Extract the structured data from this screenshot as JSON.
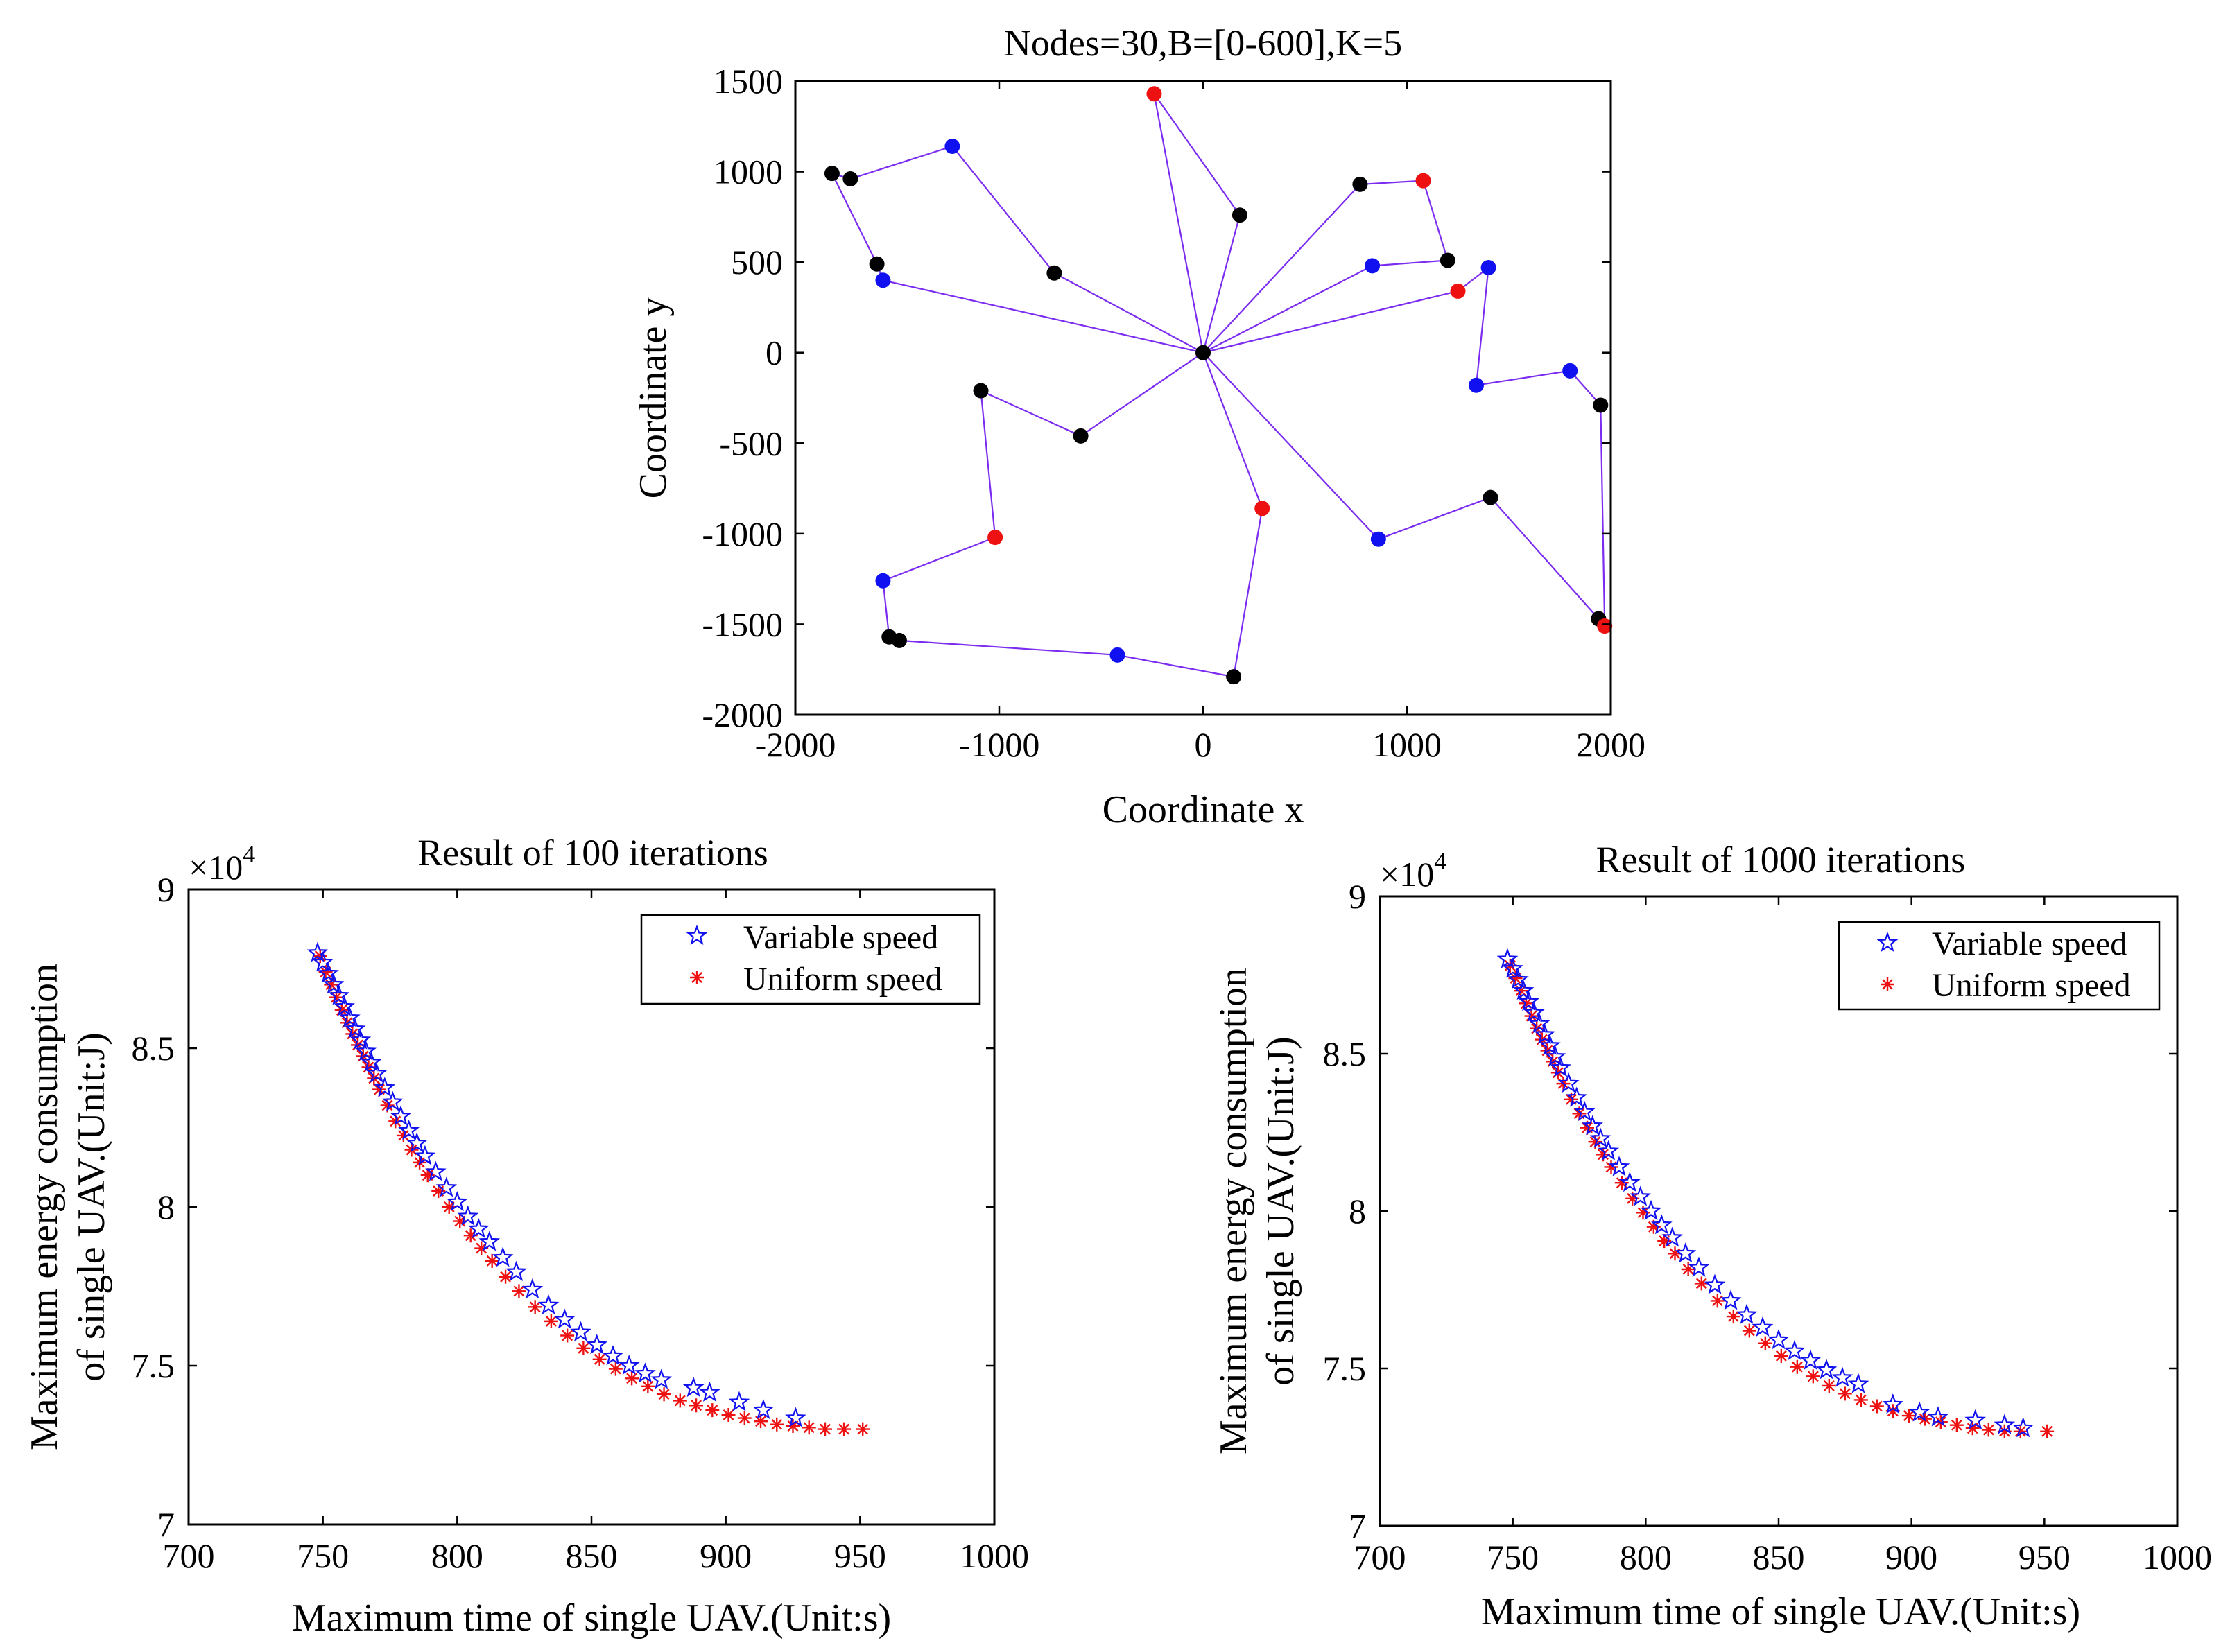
{
  "colors": {
    "blue": "#1010f0",
    "red": "#ee1111",
    "black": "#000000",
    "route": "#7b2cf0"
  },
  "chart_data": [
    {
      "type": "scatter",
      "title": "Nodes=30,B=[0-600],K=5",
      "xlabel": "Coordinate x",
      "ylabel": "Coordinate y",
      "xlim": [
        -2000,
        2000
      ],
      "ylim": [
        -2000,
        1500
      ],
      "xticks": [
        -2000,
        -1000,
        0,
        1000,
        2000
      ],
      "xtick_labels": [
        "-2000",
        "-1000",
        "0",
        "1000",
        "2000"
      ],
      "yticks": [
        1500,
        1000,
        500,
        0,
        -500,
        -1000,
        -1500,
        -2000
      ],
      "ytick_labels": [
        "1500",
        "1000",
        "500",
        "0",
        "-500",
        "-1000",
        "-1500",
        "-2000"
      ],
      "depot": {
        "x": 0,
        "y": 0
      },
      "nodes": [
        {
          "x": -1820,
          "y": 990,
          "color": "black"
        },
        {
          "x": -1730,
          "y": 960,
          "color": "black"
        },
        {
          "x": -1230,
          "y": 1140,
          "color": "blue"
        },
        {
          "x": -1600,
          "y": 490,
          "color": "black"
        },
        {
          "x": -1570,
          "y": 400,
          "color": "blue"
        },
        {
          "x": -730,
          "y": 440,
          "color": "black"
        },
        {
          "x": -240,
          "y": 1430,
          "color": "red"
        },
        {
          "x": 180,
          "y": 760,
          "color": "black"
        },
        {
          "x": 770,
          "y": 930,
          "color": "black"
        },
        {
          "x": 1080,
          "y": 950,
          "color": "red"
        },
        {
          "x": 830,
          "y": 480,
          "color": "blue"
        },
        {
          "x": 1200,
          "y": 510,
          "color": "black"
        },
        {
          "x": 1250,
          "y": 340,
          "color": "red"
        },
        {
          "x": 1400,
          "y": 470,
          "color": "blue"
        },
        {
          "x": 1340,
          "y": -180,
          "color": "blue"
        },
        {
          "x": 1800,
          "y": -100,
          "color": "blue"
        },
        {
          "x": 1950,
          "y": -290,
          "color": "black"
        },
        {
          "x": 1940,
          "y": -1470,
          "color": "black"
        },
        {
          "x": 1970,
          "y": -1510,
          "color": "red"
        },
        {
          "x": 1410,
          "y": -800,
          "color": "black"
        },
        {
          "x": 860,
          "y": -1030,
          "color": "blue"
        },
        {
          "x": 290,
          "y": -860,
          "color": "red"
        },
        {
          "x": 150,
          "y": -1790,
          "color": "black"
        },
        {
          "x": -420,
          "y": -1670,
          "color": "blue"
        },
        {
          "x": -1490,
          "y": -1590,
          "color": "black"
        },
        {
          "x": -1540,
          "y": -1570,
          "color": "black"
        },
        {
          "x": -1570,
          "y": -1260,
          "color": "blue"
        },
        {
          "x": -1020,
          "y": -1020,
          "color": "red"
        },
        {
          "x": -1090,
          "y": -210,
          "color": "black"
        },
        {
          "x": -600,
          "y": -460,
          "color": "black"
        }
      ],
      "routes": [
        [
          [
            0,
            0
          ],
          [
            -1570,
            400
          ],
          [
            -1600,
            490
          ],
          [
            -1820,
            990
          ],
          [
            -1730,
            960
          ],
          [
            -1230,
            1140
          ],
          [
            -730,
            440
          ],
          [
            0,
            0
          ]
        ],
        [
          [
            0,
            0
          ],
          [
            -240,
            1430
          ],
          [
            180,
            760
          ],
          [
            0,
            0
          ]
        ],
        [
          [
            0,
            0
          ],
          [
            770,
            930
          ],
          [
            1080,
            950
          ],
          [
            1200,
            510
          ],
          [
            830,
            480
          ],
          [
            0,
            0
          ]
        ],
        [
          [
            0,
            0
          ],
          [
            1250,
            340
          ],
          [
            1400,
            470
          ],
          [
            1340,
            -180
          ],
          [
            1800,
            -100
          ],
          [
            1950,
            -290
          ],
          [
            1970,
            -1510
          ],
          [
            1940,
            -1470
          ],
          [
            1410,
            -800
          ],
          [
            860,
            -1030
          ],
          [
            0,
            0
          ]
        ],
        [
          [
            0,
            0
          ],
          [
            290,
            -860
          ],
          [
            150,
            -1790
          ],
          [
            -420,
            -1670
          ],
          [
            -1490,
            -1590
          ],
          [
            -1540,
            -1570
          ],
          [
            -1570,
            -1260
          ],
          [
            -1020,
            -1020
          ],
          [
            -1090,
            -210
          ],
          [
            -600,
            -460
          ],
          [
            0,
            0
          ]
        ]
      ]
    },
    {
      "type": "scatter",
      "title": "Result of 100 iterations",
      "xlabel": "Maximum time of single UAV.(Unit:s)",
      "ylabel_lines": [
        "Maximum energy consumption",
        "of single UAV.(Unit:J)"
      ],
      "xlim": [
        700,
        1000
      ],
      "ylim": [
        70000,
        90000
      ],
      "xticks": [
        700,
        750,
        800,
        850,
        900,
        950,
        1000
      ],
      "xtick_labels": [
        "700",
        "750",
        "800",
        "850",
        "900",
        "950",
        "1000"
      ],
      "yticks": [
        70000,
        75000,
        80000,
        85000,
        90000
      ],
      "ytick_labels": [
        "7",
        "7.5",
        "8",
        "8.5",
        "9"
      ],
      "y_multiplier_base": "×10",
      "y_multiplier_exp": "4",
      "legend": [
        "Variable speed",
        "Uniform speed"
      ],
      "legend_position": "top-right",
      "series": [
        {
          "name": "Variable speed",
          "marker": "pentagram",
          "x": [
            748,
            750,
            752,
            754,
            756,
            758,
            760,
            762,
            764,
            766,
            768,
            770,
            773,
            776,
            779,
            782,
            785,
            788,
            792,
            796,
            800,
            804,
            808,
            812,
            817,
            822,
            828,
            834,
            840,
            846,
            852,
            858,
            864,
            870,
            876,
            888,
            894,
            905,
            914,
            926
          ],
          "y": [
            88000,
            87700,
            87350,
            87000,
            86650,
            86300,
            85950,
            85600,
            85250,
            84900,
            84550,
            84200,
            83750,
            83300,
            82850,
            82400,
            82000,
            81600,
            81100,
            80600,
            80150,
            79700,
            79300,
            78900,
            78400,
            77950,
            77400,
            76900,
            76450,
            76050,
            75650,
            75300,
            75000,
            74750,
            74550,
            74300,
            74150,
            73850,
            73600,
            73350
          ]
        },
        {
          "name": "Uniform speed",
          "marker": "asterisk",
          "x": [
            749,
            751,
            753,
            755,
            757,
            759,
            761,
            763,
            765,
            767,
            769,
            771,
            774,
            777,
            780,
            783,
            786,
            789,
            793,
            797,
            801,
            805,
            809,
            813,
            818,
            823,
            829,
            835,
            841,
            847,
            853,
            859,
            865,
            871,
            877,
            883,
            889,
            895,
            901,
            907,
            913,
            919,
            925,
            931,
            937,
            944,
            951
          ],
          "y": [
            87900,
            87400,
            87000,
            86600,
            86200,
            85800,
            85450,
            85100,
            84750,
            84400,
            84050,
            83700,
            83200,
            82700,
            82250,
            81800,
            81400,
            81000,
            80500,
            80000,
            79550,
            79100,
            78700,
            78300,
            77800,
            77350,
            76850,
            76400,
            75950,
            75550,
            75200,
            74900,
            74600,
            74350,
            74100,
            73900,
            73750,
            73600,
            73450,
            73350,
            73250,
            73150,
            73100,
            73050,
            73000,
            73000,
            73000
          ]
        }
      ]
    },
    {
      "type": "scatter",
      "title": "Result of 1000 iterations",
      "xlabel": "Maximum time of single UAV.(Unit:s)",
      "ylabel_lines": [
        "Maximum energy consumption",
        "of single UAV.(Unit:J)"
      ],
      "xlim": [
        700,
        1000
      ],
      "ylim": [
        70000,
        90000
      ],
      "xticks": [
        700,
        750,
        800,
        850,
        900,
        950,
        1000
      ],
      "xtick_labels": [
        "700",
        "750",
        "800",
        "850",
        "900",
        "950",
        "1000"
      ],
      "yticks": [
        70000,
        75000,
        80000,
        85000,
        90000
      ],
      "ytick_labels": [
        "7",
        "7.5",
        "8",
        "8.5",
        "9"
      ],
      "y_multiplier_base": "×10",
      "y_multiplier_exp": "4",
      "legend": [
        "Variable speed",
        "Uniform speed"
      ],
      "legend_position": "top-right",
      "series": [
        {
          "name": "Variable speed",
          "marker": "pentagram",
          "x": [
            748,
            750,
            752,
            754,
            756,
            758,
            760,
            762,
            764,
            766,
            768,
            771,
            774,
            777,
            780,
            783,
            786,
            790,
            794,
            798,
            802,
            806,
            810,
            815,
            820,
            826,
            832,
            838,
            844,
            850,
            856,
            862,
            868,
            874,
            880,
            893,
            903,
            910,
            924,
            935,
            942
          ],
          "y": [
            88000,
            87700,
            87350,
            87000,
            86650,
            86300,
            85950,
            85600,
            85250,
            84900,
            84550,
            84050,
            83600,
            83150,
            82700,
            82300,
            81900,
            81400,
            80900,
            80450,
            80000,
            79550,
            79150,
            78650,
            78200,
            77650,
            77150,
            76700,
            76300,
            75900,
            75550,
            75250,
            74950,
            74700,
            74500,
            73850,
            73600,
            73450,
            73350,
            73200,
            73100
          ]
        },
        {
          "name": "Uniform speed",
          "marker": "asterisk",
          "x": [
            749,
            751,
            753,
            755,
            757,
            759,
            761,
            763,
            765,
            767,
            769,
            772,
            775,
            778,
            781,
            784,
            787,
            791,
            795,
            799,
            803,
            807,
            811,
            816,
            821,
            827,
            833,
            839,
            845,
            851,
            857,
            863,
            869,
            875,
            881,
            887,
            893,
            899,
            905,
            911,
            917,
            923,
            929,
            935,
            941,
            951
          ],
          "y": [
            87800,
            87400,
            87000,
            86600,
            86200,
            85800,
            85450,
            85100,
            84750,
            84400,
            84050,
            83550,
            83100,
            82650,
            82200,
            81800,
            81400,
            80900,
            80400,
            79950,
            79500,
            79050,
            78650,
            78150,
            77700,
            77150,
            76650,
            76200,
            75800,
            75400,
            75050,
            74750,
            74450,
            74200,
            74000,
            73800,
            73650,
            73500,
            73400,
            73300,
            73200,
            73100,
            73050,
            73000,
            73000,
            73000
          ]
        }
      ]
    }
  ]
}
